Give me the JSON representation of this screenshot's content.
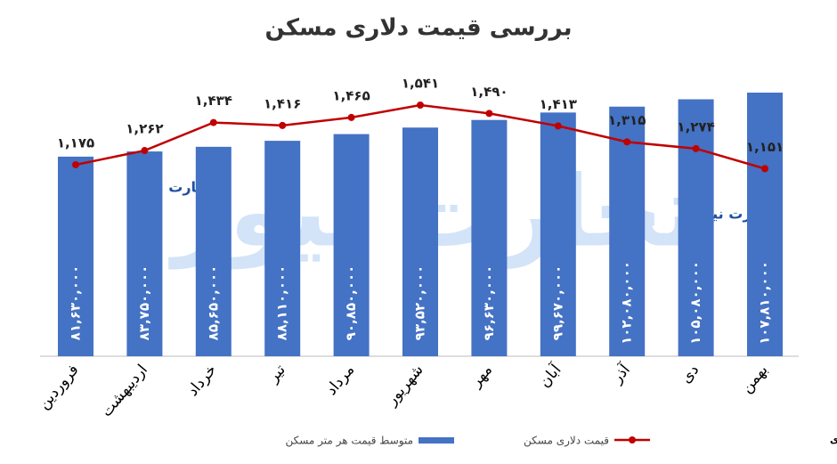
{
  "chart_data": {
    "type": "combo",
    "title": "بررسی قیمت دلاری مسکن",
    "categories": [
      "فروردین",
      "اردیبهشت",
      "خرداد",
      "تیر",
      "مرداد",
      "شهریور",
      "مهر",
      "آبان",
      "آذر",
      "دی",
      "بهمن"
    ],
    "series": [
      {
        "name": "متوسط قیمت هر متر مسکن",
        "type": "bar",
        "color": "#4472c4",
        "values": [
          81630000,
          83750000,
          85650000,
          88110000,
          90850000,
          93520000,
          96630000,
          99670000,
          102080000,
          105080000,
          107810000
        ],
        "value_labels": [
          "۸۱,۶۳۰,۰۰۰",
          "۸۳,۷۵۰,۰۰۰",
          "۸۵,۶۵۰,۰۰۰",
          "۸۸,۱۱۰,۰۰۰",
          "۹۰,۸۵۰,۰۰۰",
          "۹۳,۵۲۰,۰۰۰",
          "۹۶,۶۳۰,۰۰۰",
          "۹۹,۶۷۰,۰۰۰",
          "۱۰۲,۰۸۰,۰۰۰",
          "۱۰۵,۰۸۰,۰۰۰",
          "۱۰۷,۸۱۰,۰۰۰"
        ]
      },
      {
        "name": "قیمت دلاری مسکن",
        "type": "line",
        "color": "#c00000",
        "values": [
          1175,
          1262,
          1434,
          1416,
          1465,
          1541,
          1490,
          1413,
          1315,
          1274,
          1151
        ],
        "value_labels": [
          "۱,۱۷۵",
          "۱,۲۶۲",
          "۱,۴۳۴",
          "۱,۴۱۶",
          "۱,۴۶۵",
          "۱,۵۴۱",
          "۱,۴۹۰",
          "۱,۴۱۳",
          "۱,۳۱۵",
          "۱,۲۷۴",
          "۱,۱۵۱"
        ]
      }
    ],
    "source": "منبع: داده‌های مرکز آمار و بانک مرکزی",
    "watermark": "تجارت نیوز"
  }
}
